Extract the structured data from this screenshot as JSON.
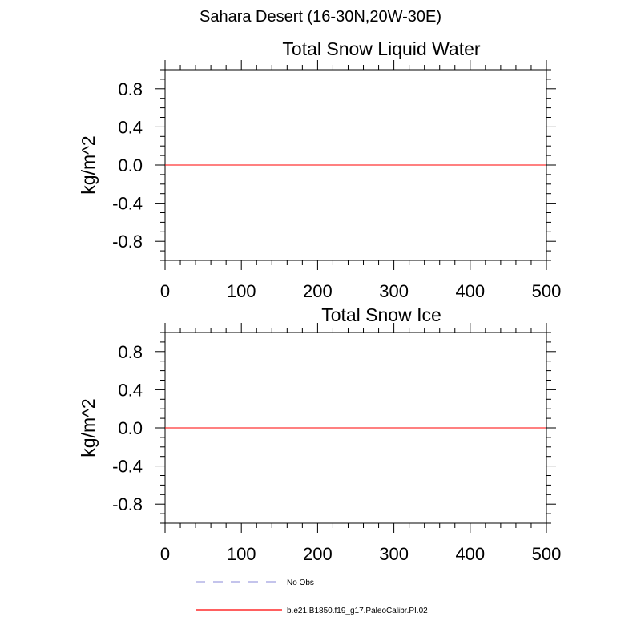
{
  "figure": {
    "title": "Sahara Desert (16-30N,20W-30E)"
  },
  "legend": {
    "placement": "bottom",
    "entries": [
      {
        "label": "No Obs",
        "color": "#a0a0e0",
        "dash": "dashed"
      },
      {
        "label": "b.e21.B1850.f19_g17.PaleoCalibr.PI.02",
        "color": "#ff0000",
        "dash": "solid"
      }
    ]
  },
  "chart_data": [
    {
      "type": "line",
      "title": "Total Snow Liquid Water",
      "xlabel": "",
      "ylabel": "kg/m^2",
      "xlim": [
        0,
        500
      ],
      "ylim": [
        -1.0,
        1.0
      ],
      "xticks": [
        0,
        100,
        200,
        300,
        400,
        500
      ],
      "xtick_labels": [
        "0",
        "100",
        "200",
        "300",
        "400",
        "500"
      ],
      "yticks": [
        0.8,
        0.4,
        0.0,
        -0.4,
        -0.8
      ],
      "ytick_labels": [
        "0.8",
        "0.4",
        "0.0",
        "-0.4",
        "-0.8"
      ],
      "grid": false,
      "series": [
        {
          "name": "b.e21.B1850.f19_g17.PaleoCalibr.PI.02",
          "color": "#ff0000",
          "x": [
            0,
            500
          ],
          "y": [
            0.0,
            0.0
          ]
        }
      ]
    },
    {
      "type": "line",
      "title": "Total Snow Ice",
      "xlabel": "",
      "ylabel": "kg/m^2",
      "xlim": [
        0,
        500
      ],
      "ylim": [
        -1.0,
        1.0
      ],
      "xticks": [
        0,
        100,
        200,
        300,
        400,
        500
      ],
      "xtick_labels": [
        "0",
        "100",
        "200",
        "300",
        "400",
        "500"
      ],
      "yticks": [
        0.8,
        0.4,
        0.0,
        -0.4,
        -0.8
      ],
      "ytick_labels": [
        "0.8",
        "0.4",
        "0.0",
        "-0.4",
        "-0.8"
      ],
      "grid": false,
      "series": [
        {
          "name": "b.e21.B1850.f19_g17.PaleoCalibr.PI.02",
          "color": "#ff0000",
          "x": [
            0,
            500
          ],
          "y": [
            0.0,
            0.0
          ]
        }
      ]
    }
  ]
}
